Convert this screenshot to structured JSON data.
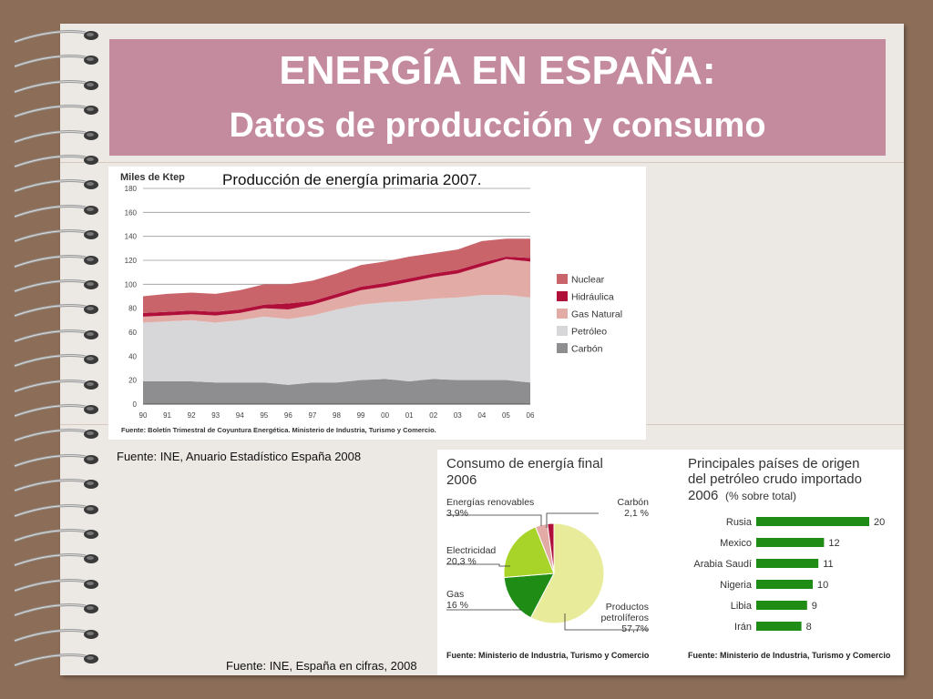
{
  "slide": {
    "title": "ENERGÍA EN ESPAÑA:",
    "subtitle": "Datos de producción y consumo",
    "source_left": "Fuente: INE, Anuario Estadístico España 2008",
    "source_bottom": "Fuente: INE, España en cifras, 2008"
  },
  "colors": {
    "nuclear": "#c9646b",
    "hidraulica": "#b00f3a",
    "gas": "#e3aba6",
    "petroleo": "#d7d6d8",
    "carbon": "#8e8e91",
    "title_bg": "#c48b9f",
    "green": "#1f8c16",
    "pie_yellow": "#e8ec9a",
    "pie_lime": "#a8d42a"
  },
  "chart_data": [
    {
      "type": "area",
      "title": "Producción de energía primaria 2007.",
      "ylabel": "Miles de Ktep",
      "ylim": [
        0,
        180
      ],
      "yticks": [
        "0",
        "20",
        "40",
        "60",
        "80",
        "100",
        "120",
        "140",
        "160",
        "180"
      ],
      "x": [
        "90",
        "91",
        "92",
        "93",
        "94",
        "95",
        "96",
        "97",
        "98",
        "99",
        "00",
        "01",
        "02",
        "03",
        "04",
        "05",
        "06"
      ],
      "stacked": true,
      "grid": true,
      "legend_position": "right",
      "series": [
        {
          "name": "Carbón",
          "values": [
            19,
            19,
            19,
            18,
            18,
            18,
            16,
            18,
            18,
            20,
            21,
            19,
            21,
            20,
            20,
            20,
            18
          ]
        },
        {
          "name": "Petróleo",
          "values": [
            49,
            50,
            51,
            50,
            52,
            55,
            55,
            56,
            61,
            63,
            64,
            67,
            67,
            69,
            71,
            71,
            71
          ]
        },
        {
          "name": "Gas Natural",
          "values": [
            5,
            5,
            5,
            6,
            6,
            7,
            8,
            9,
            10,
            12,
            13,
            16,
            18,
            20,
            24,
            30,
            30
          ]
        },
        {
          "name": "Hidráulica",
          "values": [
            3,
            3,
            3,
            3,
            3,
            3,
            5,
            3,
            3,
            3,
            3,
            3,
            3,
            3,
            3,
            2,
            3
          ]
        },
        {
          "name": "Nuclear",
          "values": [
            14,
            15,
            15,
            15,
            16,
            17,
            16,
            17,
            17,
            18,
            18,
            18,
            17,
            17,
            18,
            15,
            16
          ]
        }
      ],
      "footnote": "Fuente: Boletín Trimestral de Coyuntura Energética. Ministerio de Industria, Turismo y Comercio."
    },
    {
      "type": "pie",
      "title": "Consumo de energía final",
      "subtitle": "2006",
      "slices": [
        {
          "label": "Productos petrolíferos",
          "value_text": "57,7%",
          "value": 57.7
        },
        {
          "label": "Gas",
          "value_text": "16 %",
          "value": 16
        },
        {
          "label": "Electricidad",
          "value_text": "20,3 %",
          "value": 20.3
        },
        {
          "label": "Energías renovables",
          "value_text": "3,9%",
          "value": 3.9
        },
        {
          "label": "Carbón",
          "value_text": "2,1 %",
          "value": 2.1
        }
      ],
      "footnote": "Fuente: Ministerio de Industria, Turismo y Comercio"
    },
    {
      "type": "bar",
      "orientation": "horizontal",
      "title_line1": "Principales países de origen",
      "title_line2": "del petróleo crudo importado",
      "title_line3": "2006",
      "title_unit": "(% sobre total)",
      "categories": [
        "Rusia",
        "Mexico",
        "Arabia Saudí",
        "Nigeria",
        "Libia",
        "Irán"
      ],
      "values": [
        20,
        12,
        11,
        10,
        9,
        8
      ],
      "footnote": "Fuente: Ministerio de Industria, Turismo y Comercio"
    }
  ]
}
